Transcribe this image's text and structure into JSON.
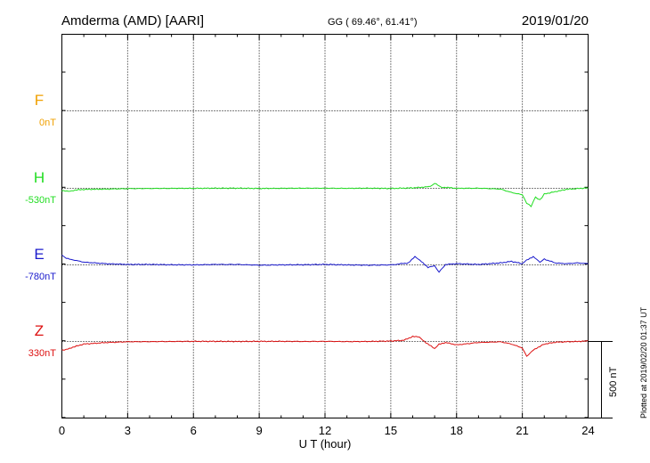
{
  "header": {
    "station": "Amderma (AMD)  [AARI]",
    "coords": "GG ( 69.46°,  61.41°)",
    "date": "2019/01/20"
  },
  "footer": {
    "plotted": "Plotted at 2019/02/20 01:37 UT"
  },
  "chart_data": {
    "type": "line",
    "xlabel": "U T (hour)",
    "xlim": [
      0,
      24
    ],
    "x_ticks": [
      "0",
      "3",
      "6",
      "9",
      "12",
      "15",
      "18",
      "21",
      "24"
    ],
    "scale_bar": {
      "label": "500 nT",
      "value": 500
    },
    "grid": true,
    "series": [
      {
        "name": "F",
        "offset_label": "0nT",
        "color": "#f0a000",
        "x": [],
        "y": []
      },
      {
        "name": "H",
        "offset_label": "-530nT",
        "color": "#22dd22",
        "x": [
          0,
          0.3,
          0.6,
          1,
          2,
          3,
          4,
          5,
          6,
          7,
          8,
          9,
          10,
          11,
          12,
          13,
          14,
          15,
          16,
          16.5,
          16.8,
          17,
          17.3,
          17.6,
          18,
          19,
          20,
          20.5,
          21,
          21.2,
          21.4,
          21.6,
          21.8,
          22,
          22.5,
          23,
          23.5,
          24
        ],
        "y": [
          -20,
          -22,
          -15,
          -10,
          -8,
          -5,
          -4,
          -3,
          -3,
          -2,
          -2,
          -4,
          -3,
          -2,
          -2,
          -3,
          -2,
          -4,
          0,
          5,
          8,
          30,
          5,
          2,
          -3,
          -2,
          -8,
          -30,
          -45,
          -100,
          -120,
          -60,
          -80,
          -40,
          -25,
          -10,
          -5,
          0
        ]
      },
      {
        "name": "E",
        "offset_label": "-780nT",
        "color": "#1a1acc",
        "x": [
          0,
          0.2,
          0.5,
          1,
          2,
          3,
          4,
          5,
          6,
          7,
          8,
          9,
          10,
          11,
          12,
          13,
          14,
          15,
          15.8,
          16.1,
          16.4,
          16.7,
          17,
          17.2,
          17.5,
          18,
          19,
          20,
          20.5,
          21,
          21.2,
          21.5,
          21.8,
          22,
          22.5,
          23,
          23.5,
          24
        ],
        "y": [
          60,
          40,
          30,
          15,
          5,
          0,
          0,
          -2,
          -3,
          0,
          0,
          -5,
          -3,
          -2,
          0,
          -3,
          -5,
          -3,
          10,
          50,
          20,
          -20,
          -10,
          -50,
          0,
          5,
          0,
          10,
          20,
          5,
          30,
          50,
          15,
          35,
          10,
          5,
          10,
          5
        ]
      },
      {
        "name": "Z",
        "offset_label": "330nT",
        "color": "#dd1111",
        "x": [
          0,
          0.2,
          0.5,
          1,
          2,
          3,
          4,
          5,
          6,
          7,
          8,
          9,
          10,
          11,
          12,
          13,
          14,
          15,
          15.6,
          16,
          16.3,
          16.6,
          17,
          17.2,
          17.5,
          18,
          19,
          20,
          20.5,
          21,
          21.2,
          21.5,
          21.8,
          22,
          22.5,
          23,
          23.5,
          24
        ],
        "y": [
          -60,
          -55,
          -40,
          -20,
          -10,
          -5,
          -4,
          -3,
          -2,
          -2,
          -3,
          -2,
          -2,
          -3,
          -2,
          -4,
          -3,
          0,
          5,
          30,
          25,
          -10,
          -50,
          -20,
          -10,
          -25,
          -10,
          -5,
          -20,
          -45,
          -100,
          -60,
          -35,
          -20,
          -8,
          -5,
          -3,
          0
        ]
      }
    ]
  }
}
